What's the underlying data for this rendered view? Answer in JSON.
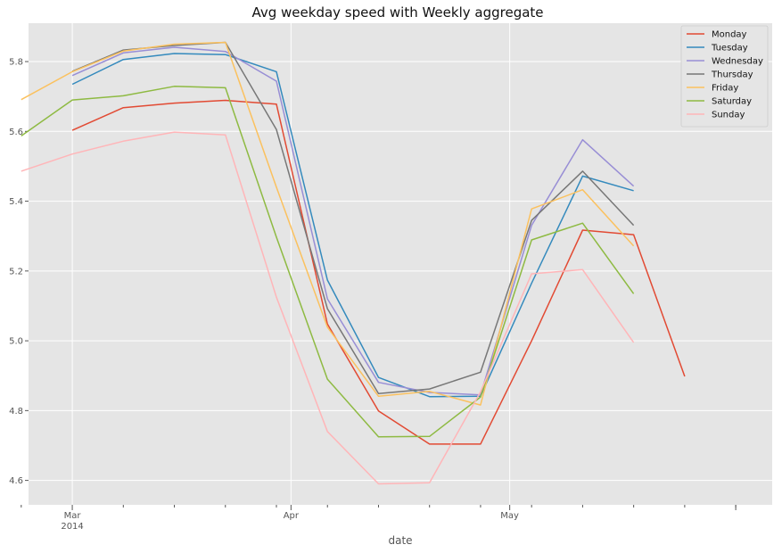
{
  "chart_data": {
    "type": "line",
    "title": "Avg weekday speed with Weekly aggregate",
    "xlabel": "date",
    "ylabel": "",
    "x_tick_labels": [
      {
        "label": "Mar",
        "sublabel": "2014",
        "date": "2014-03-02"
      },
      {
        "label": "Apr",
        "sublabel": "",
        "date": "2014-04-01"
      },
      {
        "label": "May",
        "sublabel": "",
        "date": "2014-05-01"
      }
    ],
    "x_range": [
      "2014-02-24",
      "2014-06-06"
    ],
    "ylim": [
      4.53,
      5.91
    ],
    "y_ticks": [
      "4.6",
      "4.8",
      "5.0",
      "5.2",
      "5.4",
      "5.6",
      "5.8"
    ],
    "grid": true,
    "legend_position": "top-right",
    "series": [
      {
        "name": "Monday",
        "color": "#E24A33",
        "x": [
          "2014-03-02",
          "2014-03-09",
          "2014-03-16",
          "2014-03-23",
          "2014-03-30",
          "2014-04-06",
          "2014-04-13",
          "2014-04-20",
          "2014-04-27",
          "2014-05-04",
          "2014-05-11",
          "2014-05-18",
          "2014-05-25"
        ],
        "y": [
          5.603,
          5.668,
          5.681,
          5.689,
          5.678,
          5.048,
          4.799,
          4.704,
          4.704,
          5.0,
          5.317,
          5.304,
          4.898
        ]
      },
      {
        "name": "Tuesday",
        "color": "#348ABD",
        "x": [
          "2014-03-02",
          "2014-03-09",
          "2014-03-16",
          "2014-03-23",
          "2014-03-30",
          "2014-04-06",
          "2014-04-13",
          "2014-04-20",
          "2014-04-27",
          "2014-05-04",
          "2014-05-11",
          "2014-05-18"
        ],
        "y": [
          5.735,
          5.806,
          5.823,
          5.82,
          5.771,
          5.174,
          4.895,
          4.84,
          4.841,
          5.165,
          5.472,
          5.43
        ]
      },
      {
        "name": "Wednesday",
        "color": "#988ED5",
        "x": [
          "2014-03-02",
          "2014-03-09",
          "2014-03-16",
          "2014-03-23",
          "2014-03-30",
          "2014-04-06",
          "2014-04-13",
          "2014-04-20",
          "2014-04-27",
          "2014-05-04",
          "2014-05-11",
          "2014-05-18"
        ],
        "y": [
          5.76,
          5.825,
          5.841,
          5.829,
          5.744,
          5.12,
          4.881,
          4.852,
          4.845,
          5.331,
          5.576,
          5.443
        ]
      },
      {
        "name": "Thursday",
        "color": "#777777",
        "x": [
          "2014-03-02",
          "2014-03-09",
          "2014-03-16",
          "2014-03-23",
          "2014-03-30",
          "2014-04-06",
          "2014-04-13",
          "2014-04-20",
          "2014-04-27",
          "2014-05-04",
          "2014-05-11",
          "2014-05-18"
        ],
        "y": [
          5.772,
          5.833,
          5.846,
          5.855,
          5.605,
          5.092,
          4.849,
          4.862,
          4.91,
          5.345,
          5.486,
          5.331
        ]
      },
      {
        "name": "Friday",
        "color": "#FBC15E",
        "x": [
          "2014-02-23",
          "2014-03-02",
          "2014-03-09",
          "2014-03-16",
          "2014-03-23",
          "2014-03-30",
          "2014-04-06",
          "2014-04-13",
          "2014-04-20",
          "2014-04-27",
          "2014-05-04",
          "2014-05-11",
          "2014-05-18"
        ],
        "y": [
          5.691,
          5.771,
          5.83,
          5.85,
          5.855,
          5.44,
          5.039,
          4.841,
          4.855,
          4.816,
          5.378,
          5.433,
          5.272
        ]
      },
      {
        "name": "Saturday",
        "color": "#8EBA42",
        "x": [
          "2014-02-23",
          "2014-03-02",
          "2014-03-09",
          "2014-03-16",
          "2014-03-23",
          "2014-03-30",
          "2014-04-06",
          "2014-04-13",
          "2014-04-20",
          "2014-04-27",
          "2014-05-04",
          "2014-05-11",
          "2014-05-18"
        ],
        "y": [
          5.587,
          5.69,
          5.702,
          5.729,
          5.725,
          5.297,
          4.89,
          4.725,
          4.726,
          4.839,
          5.289,
          5.337,
          5.135
        ]
      },
      {
        "name": "Sunday",
        "color": "#FFB5B8",
        "x": [
          "2014-02-23",
          "2014-03-02",
          "2014-03-09",
          "2014-03-16",
          "2014-03-23",
          "2014-03-30",
          "2014-04-06",
          "2014-04-13",
          "2014-04-20",
          "2014-04-27",
          "2014-05-04",
          "2014-05-11",
          "2014-05-18"
        ],
        "y": [
          5.486,
          5.535,
          5.572,
          5.598,
          5.59,
          5.125,
          4.74,
          4.59,
          4.593,
          4.854,
          5.192,
          5.204,
          4.995
        ]
      }
    ]
  }
}
